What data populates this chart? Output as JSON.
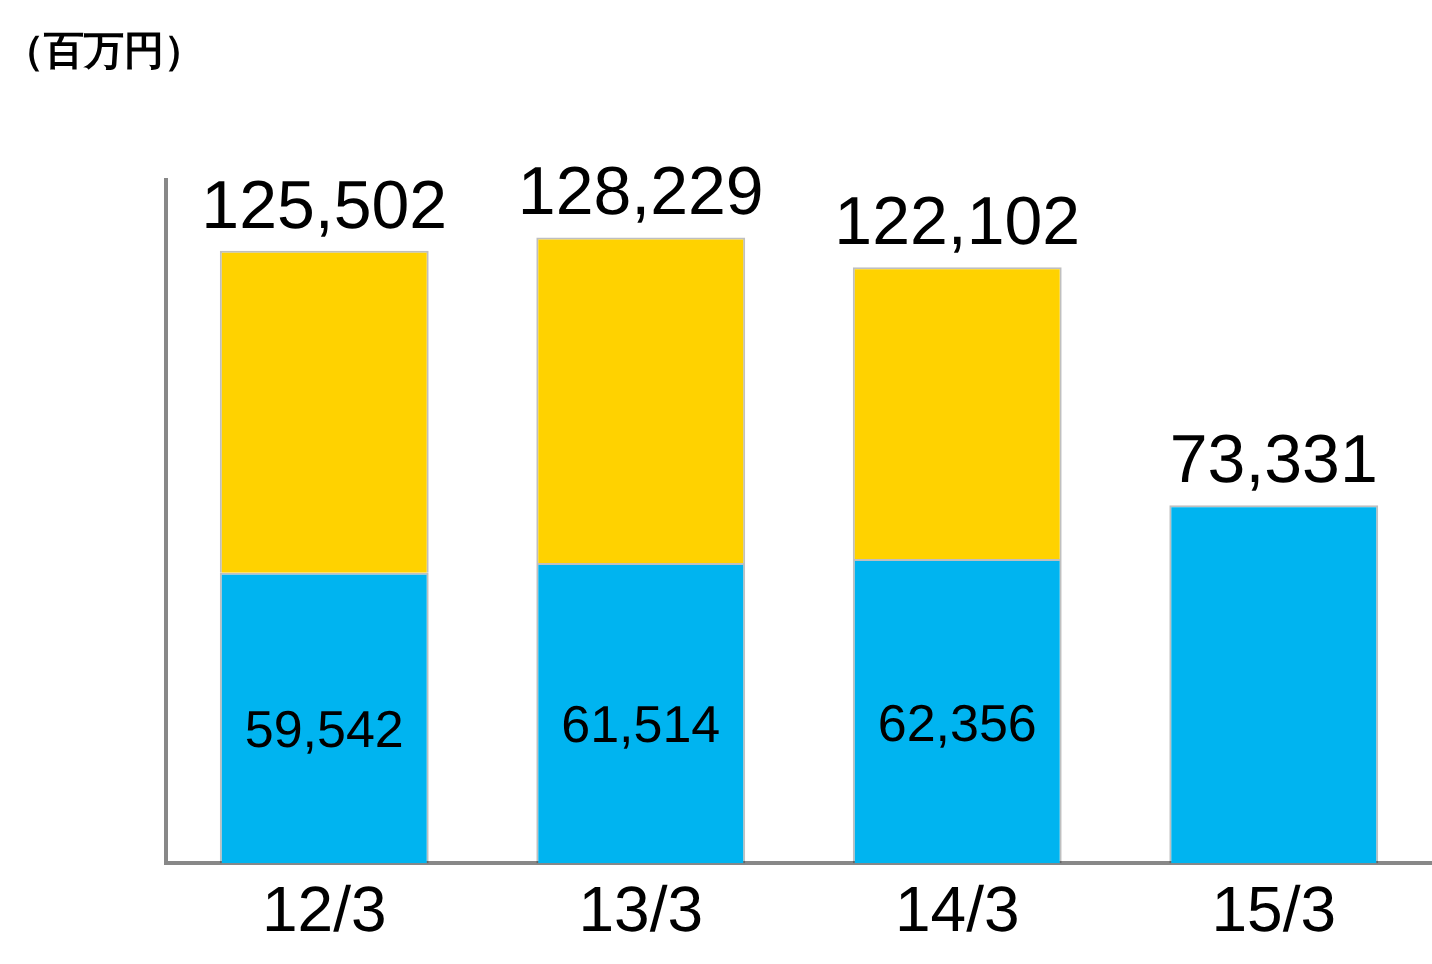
{
  "chart_data": {
    "type": "bar",
    "ylabel": "（百万円）",
    "stacked": true,
    "legend": false,
    "grid": false,
    "categories": [
      "12/3",
      "13/3",
      "14/3",
      "15/3"
    ],
    "series": [
      {
        "color": "#00b4f0",
        "values": [
          59542,
          61514,
          62356,
          73331
        ],
        "value_labels": [
          "59,542",
          "61,514",
          "62,356",
          null
        ]
      },
      {
        "color": "#ffd200",
        "values": [
          65960,
          66715,
          59746,
          null
        ]
      }
    ],
    "totals": [
      "125,502",
      "128,229",
      "122,102",
      "73,331"
    ]
  }
}
